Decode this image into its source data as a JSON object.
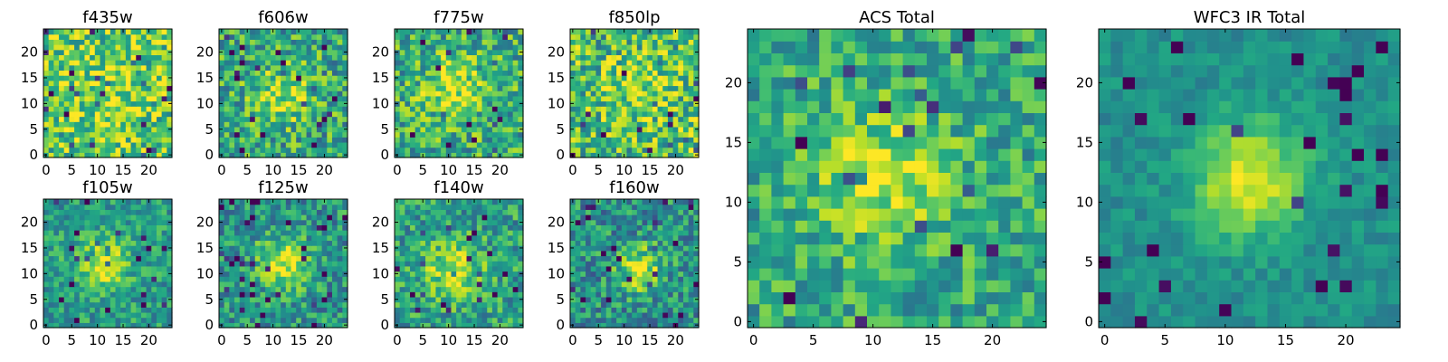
{
  "chart_data": [
    {
      "type": "heatmap",
      "title": "f435w",
      "colormap": "viridis",
      "xticks": [
        "0",
        "5",
        "10",
        "15",
        "20"
      ],
      "yticks": [
        "0",
        "5",
        "10",
        "15",
        "20"
      ],
      "xlim": [
        -0.5,
        24.5
      ],
      "ylim": [
        -0.5,
        24.5
      ],
      "grid_size": [
        25,
        25
      ],
      "peak": {
        "x": 12,
        "y": 12
      },
      "sigma": 6,
      "amplitude": 0.15,
      "base": 0.72,
      "noise": 0.3,
      "seed": 3
    },
    {
      "type": "heatmap",
      "title": "f606w",
      "colormap": "viridis",
      "xticks": [
        "0",
        "5",
        "10",
        "15",
        "20"
      ],
      "yticks": [
        "0",
        "5",
        "10",
        "15",
        "20"
      ],
      "xlim": [
        -0.5,
        24.5
      ],
      "ylim": [
        -0.5,
        24.5
      ],
      "grid_size": [
        25,
        25
      ],
      "peak": {
        "x": 12,
        "y": 12
      },
      "sigma": 4,
      "amplitude": 0.28,
      "base": 0.6,
      "noise": 0.28,
      "seed": 7
    },
    {
      "type": "heatmap",
      "title": "f775w",
      "colormap": "viridis",
      "xticks": [
        "0",
        "5",
        "10",
        "15",
        "20"
      ],
      "yticks": [
        "0",
        "5",
        "10",
        "15",
        "20"
      ],
      "xlim": [
        -0.5,
        24.5
      ],
      "ylim": [
        -0.5,
        24.5
      ],
      "grid_size": [
        25,
        25
      ],
      "peak": {
        "x": 11,
        "y": 13
      },
      "sigma": 4,
      "amplitude": 0.3,
      "base": 0.62,
      "noise": 0.28,
      "seed": 11
    },
    {
      "type": "heatmap",
      "title": "f850lp",
      "colormap": "viridis",
      "xticks": [
        "0",
        "5",
        "10",
        "15",
        "20"
      ],
      "yticks": [
        "0",
        "5",
        "10",
        "15",
        "20"
      ],
      "xlim": [
        -0.5,
        24.5
      ],
      "ylim": [
        -0.5,
        24.5
      ],
      "grid_size": [
        25,
        25
      ],
      "peak": {
        "x": 12,
        "y": 12
      },
      "sigma": 5,
      "amplitude": 0.18,
      "base": 0.68,
      "noise": 0.32,
      "seed": 19
    },
    {
      "type": "heatmap",
      "title": "f105w",
      "colormap": "viridis",
      "xticks": [
        "0",
        "5",
        "10",
        "15",
        "20"
      ],
      "yticks": [
        "0",
        "5",
        "10",
        "15",
        "20"
      ],
      "xlim": [
        -0.5,
        24.5
      ],
      "ylim": [
        -0.5,
        24.5
      ],
      "grid_size": [
        25,
        25
      ],
      "peak": {
        "x": 11,
        "y": 12
      },
      "sigma": 3.5,
      "amplitude": 0.4,
      "base": 0.55,
      "noise": 0.2,
      "seed": 23
    },
    {
      "type": "heatmap",
      "title": "f125w",
      "colormap": "viridis",
      "xticks": [
        "0",
        "5",
        "10",
        "15",
        "20"
      ],
      "yticks": [
        "0",
        "5",
        "10",
        "15",
        "20"
      ],
      "xlim": [
        -0.5,
        24.5
      ],
      "ylim": [
        -0.5,
        24.5
      ],
      "grid_size": [
        25,
        25
      ],
      "peak": {
        "x": 12,
        "y": 12
      },
      "sigma": 3.5,
      "amplitude": 0.42,
      "base": 0.52,
      "noise": 0.24,
      "seed": 29
    },
    {
      "type": "heatmap",
      "title": "f140w",
      "colormap": "viridis",
      "xticks": [
        "0",
        "5",
        "10",
        "15",
        "20"
      ],
      "yticks": [
        "0",
        "5",
        "10",
        "15",
        "20"
      ],
      "xlim": [
        -0.5,
        24.5
      ],
      "ylim": [
        -0.5,
        24.5
      ],
      "grid_size": [
        25,
        25
      ],
      "peak": {
        "x": 11,
        "y": 11
      },
      "sigma": 4,
      "amplitude": 0.35,
      "base": 0.56,
      "noise": 0.24,
      "seed": 31
    },
    {
      "type": "heatmap",
      "title": "f160w",
      "colormap": "viridis",
      "xticks": [
        "0",
        "5",
        "10",
        "15",
        "20"
      ],
      "yticks": [
        "0",
        "5",
        "10",
        "15",
        "20"
      ],
      "xlim": [
        -0.5,
        24.5
      ],
      "ylim": [
        -0.5,
        24.5
      ],
      "grid_size": [
        25,
        25
      ],
      "peak": {
        "x": 13,
        "y": 11
      },
      "sigma": 3,
      "amplitude": 0.45,
      "base": 0.5,
      "noise": 0.25,
      "seed": 37
    },
    {
      "type": "heatmap",
      "title": "ACS Total",
      "colormap": "viridis",
      "xticks": [
        "0",
        "5",
        "10",
        "15",
        "20"
      ],
      "yticks": [
        "0",
        "5",
        "10",
        "15",
        "20"
      ],
      "xlim": [
        -0.5,
        24.5
      ],
      "ylim": [
        -0.5,
        24.5
      ],
      "grid_size": [
        25,
        25
      ],
      "peak": {
        "x": 11,
        "y": 12
      },
      "sigma": 4,
      "amplitude": 0.3,
      "base": 0.6,
      "noise": 0.22,
      "seed": 41
    },
    {
      "type": "heatmap",
      "title": "WFC3 IR Total",
      "colormap": "viridis",
      "xticks": [
        "0",
        "5",
        "10",
        "15",
        "20"
      ],
      "yticks": [
        "0",
        "5",
        "10",
        "15",
        "20"
      ],
      "xlim": [
        -0.5,
        24.5
      ],
      "ylim": [
        -0.5,
        24.5
      ],
      "grid_size": [
        25,
        25
      ],
      "peak": {
        "x": 12,
        "y": 12
      },
      "sigma": 3.2,
      "amplitude": 0.48,
      "base": 0.5,
      "noise": 0.1,
      "seed": 43
    }
  ]
}
